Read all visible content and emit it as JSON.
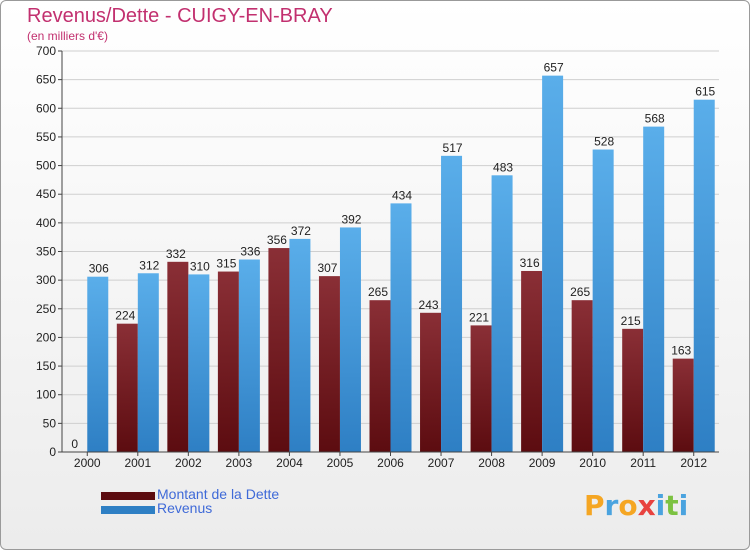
{
  "chart_data": {
    "type": "bar",
    "title": "Revenus/Dette - CUIGY-EN-BRAY",
    "subtitle": "(en milliers d'€)",
    "categories": [
      "2000",
      "2001",
      "2002",
      "2003",
      "2004",
      "2005",
      "2006",
      "2007",
      "2008",
      "2009",
      "2010",
      "2011",
      "2012"
    ],
    "series": [
      {
        "name": "Montant de la Dette",
        "values": [
          0,
          224,
          332,
          315,
          356,
          307,
          265,
          243,
          221,
          316,
          265,
          215,
          163
        ]
      },
      {
        "name": "Revenus",
        "values": [
          306,
          312,
          310,
          336,
          372,
          392,
          434,
          517,
          483,
          657,
          528,
          568,
          615
        ]
      }
    ],
    "ylim": [
      0,
      700
    ],
    "yticks": [
      0,
      50,
      100,
      150,
      200,
      250,
      300,
      350,
      400,
      450,
      500,
      550,
      600,
      650,
      700
    ],
    "grid": true,
    "legend_position": "bottom-left"
  },
  "colors": {
    "debt_top": "#8a2f36",
    "debt_bottom": "#5c0c10",
    "rev_top": "#5aaeea",
    "rev_bottom": "#2e7fc4",
    "title": "#c2306f",
    "legend_text": "#3f6ad8"
  },
  "logo": {
    "letters": [
      "P",
      "r",
      "o",
      "x",
      "i",
      "t",
      "i"
    ],
    "colors": [
      "#f5a623",
      "#4aa3df",
      "#f5a623",
      "#e8423f",
      "#4aa3df",
      "#7cc242",
      "#4aa3df"
    ]
  }
}
